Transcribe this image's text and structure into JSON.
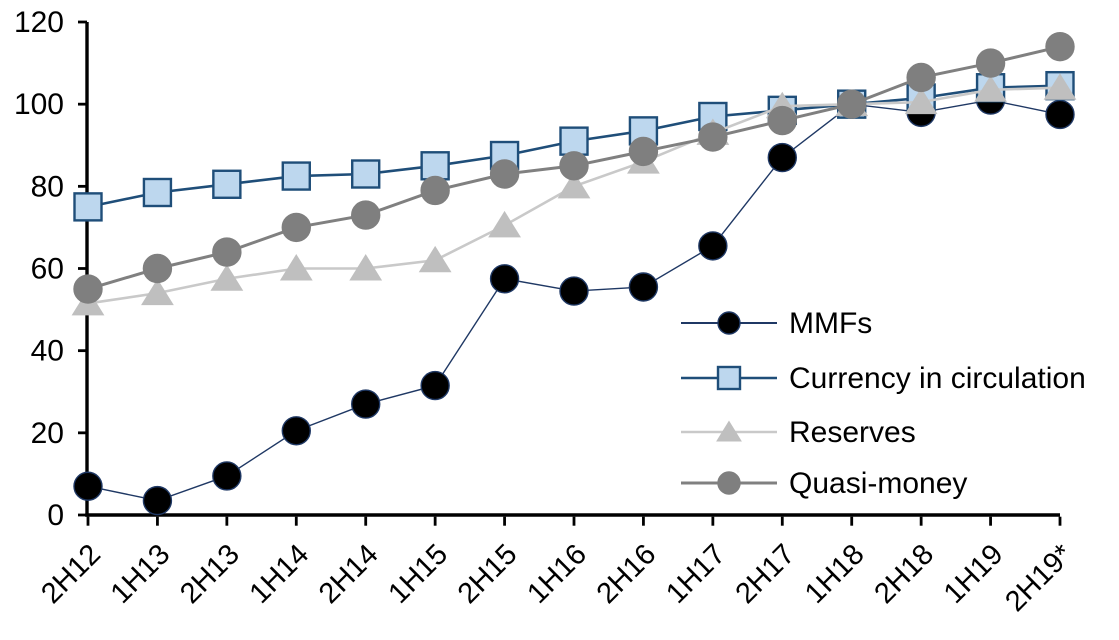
{
  "chart_data": {
    "type": "line",
    "title": "",
    "xlabel": "",
    "ylabel": "",
    "categories": [
      "2H12",
      "1H13",
      "2H13",
      "1H14",
      "2H14",
      "1H15",
      "2H15",
      "1H16",
      "2H16",
      "1H17",
      "2H17",
      "1H18",
      "2H18",
      "1H19",
      "2H19*"
    ],
    "series": [
      {
        "name": "MMFs",
        "marker": "circle",
        "line_color": "#1F3864",
        "line_width": 1.4,
        "marker_fill": "#000000",
        "marker_stroke": "#1F3864",
        "values": [
          7,
          3.5,
          9.5,
          20.5,
          27,
          31.5,
          57.5,
          54.5,
          55.5,
          65.5,
          87,
          100,
          98,
          101,
          97.5
        ]
      },
      {
        "name": "Currency in circulation",
        "marker": "square",
        "line_color": "#1F4E79",
        "line_width": 2.6,
        "marker_fill": "#BDD7EE",
        "marker_stroke": "#1F4E79",
        "values": [
          75,
          78.5,
          80.5,
          82.5,
          83,
          85,
          87.5,
          91,
          93.5,
          97,
          98.5,
          100,
          101.5,
          104,
          104.5
        ]
      },
      {
        "name": "Reserves",
        "marker": "triangle",
        "line_color": "#C9C9C9",
        "line_width": 2.6,
        "marker_fill": "#BFBFBF",
        "marker_stroke": "#BFBFBF",
        "values": [
          51.5,
          54,
          57.5,
          60,
          60,
          62,
          70.5,
          80,
          86,
          93,
          99.5,
          100,
          100.5,
          103.5,
          104
        ]
      },
      {
        "name": "Quasi-money",
        "marker": "circle",
        "line_color": "#808080",
        "line_width": 3,
        "marker_fill": "#7F7F7F",
        "marker_stroke": "#7F7F7F",
        "values": [
          55,
          60,
          64,
          70,
          73,
          79,
          83,
          85,
          88.5,
          92,
          96,
          100,
          106.5,
          110,
          114
        ]
      }
    ],
    "ylim": [
      0,
      120
    ],
    "yticks": [
      0,
      20,
      40,
      60,
      80,
      100,
      120
    ],
    "grid": "off",
    "legend_position": "middle-right",
    "axis_color": "#000000",
    "background_color": "#FFFFFF"
  }
}
